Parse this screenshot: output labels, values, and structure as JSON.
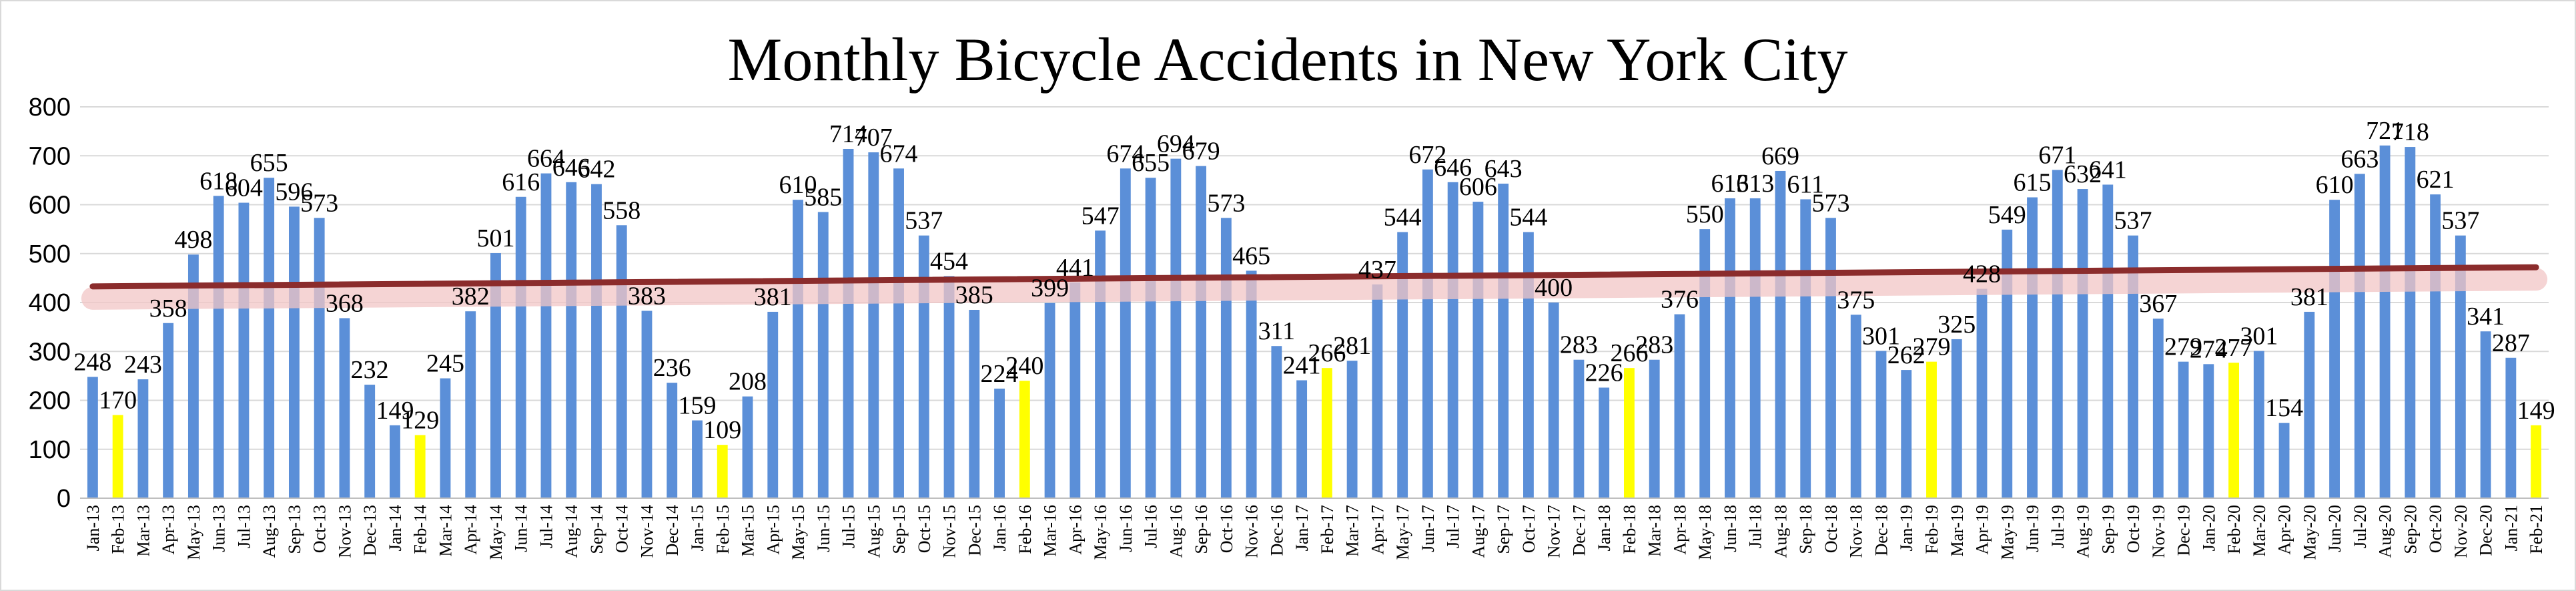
{
  "chart_data": {
    "type": "bar",
    "title": "Monthly Bicycle Accidents in New York City",
    "xlabel": "",
    "ylabel": "",
    "ylim": [
      0,
      800
    ],
    "yticks": [
      0,
      100,
      200,
      300,
      400,
      500,
      600,
      700,
      800
    ],
    "grid": "horizontal",
    "legend": "none",
    "colors": {
      "bar": "#5b8fd8",
      "highlight": "#ffff00",
      "trend": "#8b2c2c",
      "trend_glow": "#f2c6c6",
      "grid": "#d9d9d9"
    },
    "highlight_months": "Feb",
    "trendline": {
      "type": "linear",
      "start_value": 433,
      "end_value": 472
    },
    "categories": [
      "Jan-13",
      "Feb-13",
      "Mar-13",
      "Apr-13",
      "May-13",
      "Jun-13",
      "Jul-13",
      "Aug-13",
      "Sep-13",
      "Oct-13",
      "Nov-13",
      "Dec-13",
      "Jan-14",
      "Feb-14",
      "Mar-14",
      "Apr-14",
      "May-14",
      "Jun-14",
      "Jul-14",
      "Aug-14",
      "Sep-14",
      "Oct-14",
      "Nov-14",
      "Dec-14",
      "Jan-15",
      "Feb-15",
      "Mar-15",
      "Apr-15",
      "May-15",
      "Jun-15",
      "Jul-15",
      "Aug-15",
      "Sep-15",
      "Oct-15",
      "Nov-15",
      "Dec-15",
      "Jan-16",
      "Feb-16",
      "Mar-16",
      "Apr-16",
      "May-16",
      "Jun-16",
      "Jul-16",
      "Aug-16",
      "Sep-16",
      "Oct-16",
      "Nov-16",
      "Dec-16",
      "Jan-17",
      "Feb-17",
      "Mar-17",
      "Apr-17",
      "May-17",
      "Jun-17",
      "Jul-17",
      "Aug-17",
      "Sep-17",
      "Oct-17",
      "Nov-17",
      "Dec-17",
      "Jan-18",
      "Feb-18",
      "Mar-18",
      "Apr-18",
      "May-18",
      "Jun-18",
      "Jul-18",
      "Aug-18",
      "Sep-18",
      "Oct-18",
      "Nov-18",
      "Dec-18",
      "Jan-19",
      "Feb-19",
      "Mar-19",
      "Apr-19",
      "May-19",
      "Jun-19",
      "Jul-19",
      "Aug-19",
      "Sep-19",
      "Oct-19",
      "Nov-19",
      "Dec-19",
      "Jan-20",
      "Feb-20",
      "Mar-20",
      "Apr-20",
      "May-20",
      "Jun-20",
      "Jul-20",
      "Aug-20",
      "Sep-20",
      "Oct-20",
      "Nov-20",
      "Dec-20",
      "Jan-21",
      "Feb-21"
    ],
    "values": [
      248,
      170,
      243,
      358,
      498,
      618,
      604,
      655,
      596,
      573,
      368,
      232,
      149,
      129,
      245,
      382,
      501,
      616,
      664,
      646,
      642,
      558,
      383,
      236,
      159,
      109,
      208,
      381,
      610,
      585,
      714,
      707,
      674,
      537,
      454,
      385,
      224,
      240,
      399,
      441,
      547,
      674,
      655,
      694,
      679,
      573,
      465,
      311,
      241,
      266,
      281,
      437,
      544,
      672,
      646,
      606,
      643,
      544,
      400,
      283,
      226,
      266,
      283,
      376,
      550,
      613,
      613,
      669,
      611,
      573,
      375,
      301,
      262,
      279,
      325,
      428,
      549,
      615,
      671,
      632,
      641,
      537,
      367,
      279,
      274,
      277,
      301,
      154,
      381,
      610,
      663,
      721,
      718,
      621,
      537,
      341,
      287,
      149
    ]
  }
}
